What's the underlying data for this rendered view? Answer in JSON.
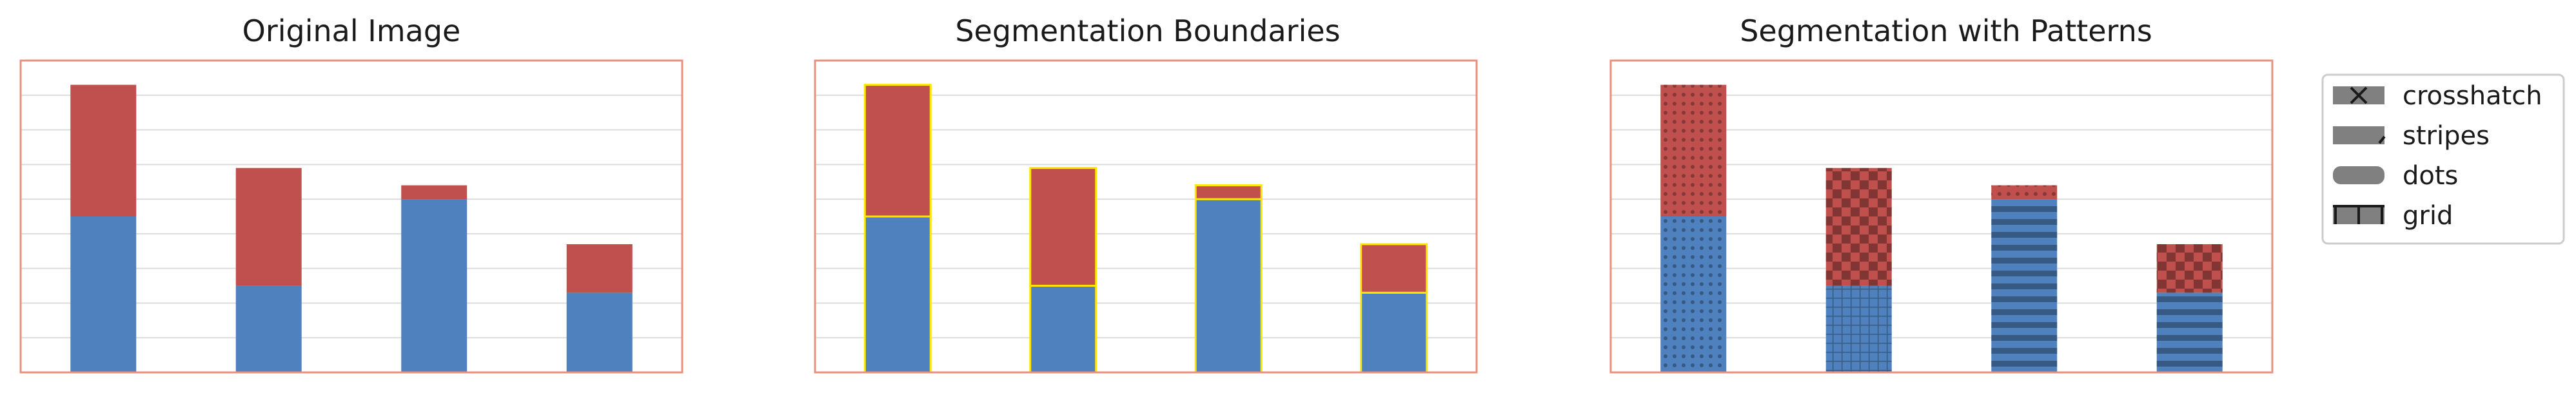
{
  "chart_data": [
    {
      "type": "bar",
      "stacked": true,
      "title": "Original Image",
      "categories": [
        "",
        "",
        "",
        ""
      ],
      "series": [
        {
          "color": "#4e81bd",
          "values": [
            4.5,
            2.5,
            5.0,
            2.3
          ]
        },
        {
          "color": "#c0504d",
          "values": [
            3.8,
            3.4,
            0.4,
            1.4
          ]
        }
      ],
      "ylim": [
        0,
        9
      ],
      "grid": true,
      "ticks_visible": false,
      "frame_color": "#e8907f"
    },
    {
      "type": "bar",
      "stacked": true,
      "title": "Segmentation Boundaries",
      "categories": [
        "",
        "",
        "",
        ""
      ],
      "series": [
        {
          "color": "#4e81bd",
          "values": [
            4.5,
            2.5,
            5.0,
            2.3
          ]
        },
        {
          "color": "#c0504d",
          "values": [
            3.8,
            3.4,
            0.4,
            1.4
          ]
        }
      ],
      "boundary_color": "#ffe600",
      "ylim": [
        0,
        9
      ],
      "grid": true,
      "ticks_visible": false,
      "frame_color": "#e8907f"
    },
    {
      "type": "bar",
      "stacked": true,
      "title": "Segmentation with Patterns",
      "categories": [
        "",
        "",
        "",
        ""
      ],
      "series": [
        {
          "color": "#4e81bd",
          "values": [
            4.5,
            2.5,
            5.0,
            2.3
          ],
          "patterns": [
            "dots",
            "grid",
            "stripes",
            "stripes"
          ]
        },
        {
          "color": "#c0504d",
          "values": [
            3.8,
            3.4,
            0.4,
            1.4
          ],
          "patterns": [
            "dots",
            "crosshatch",
            "dots",
            "crosshatch"
          ]
        }
      ],
      "ylim": [
        0,
        9
      ],
      "grid": true,
      "ticks_visible": false,
      "frame_color": "#e8907f",
      "legend": {
        "placement": "right",
        "entries": [
          {
            "label": "crosshatch",
            "icon": "crosshatch-icon"
          },
          {
            "label": "stripes",
            "icon": "stripes-icon"
          },
          {
            "label": "dots",
            "icon": "dots-icon"
          },
          {
            "label": "grid",
            "icon": "grid-icon"
          }
        ]
      }
    }
  ]
}
